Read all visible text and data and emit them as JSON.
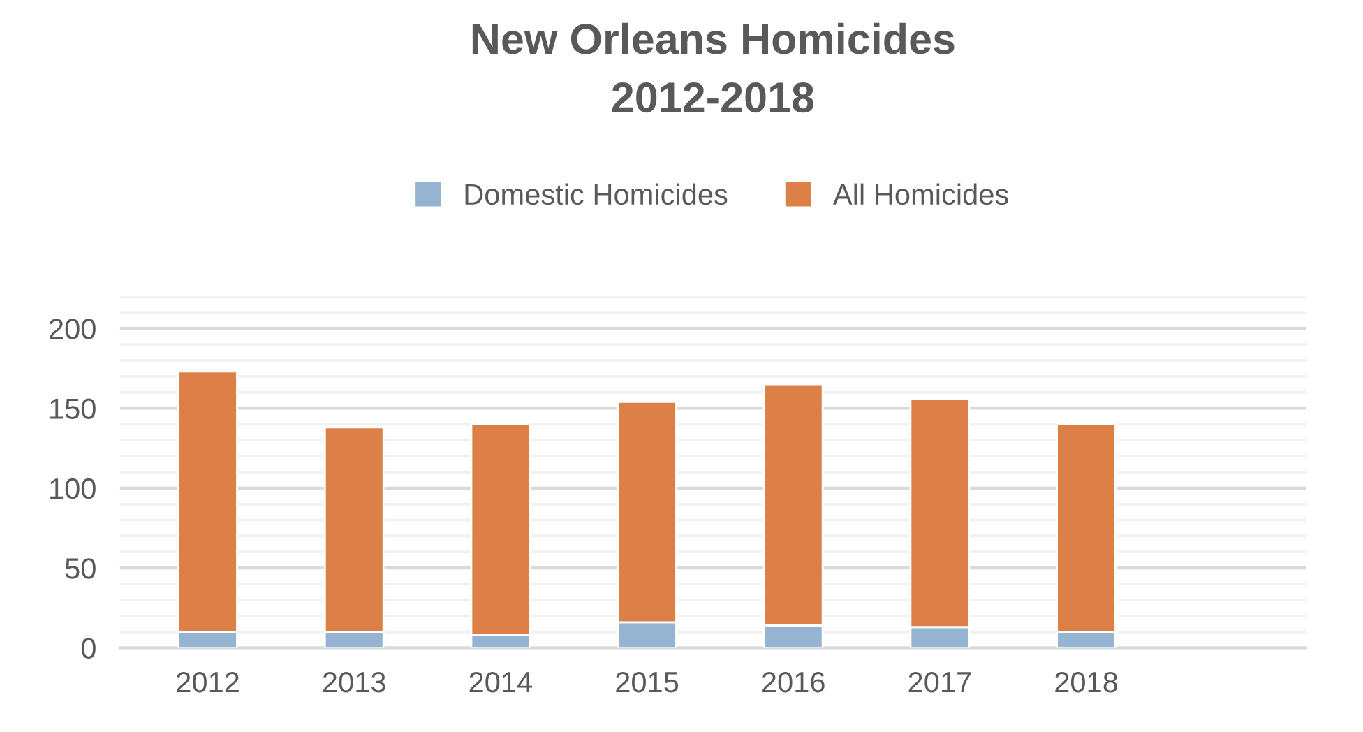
{
  "chart_data": {
    "type": "bar",
    "title": "New Orleans Homicides\n2012-2018",
    "stacked": true,
    "categories": [
      "2012",
      "2013",
      "2014",
      "2015",
      "2016",
      "2017",
      "2018",
      null
    ],
    "series": [
      {
        "name": "Domestic Homicides",
        "color": "#95b4d2",
        "values": [
          10,
          10,
          8,
          16,
          14,
          13,
          10,
          null
        ]
      },
      {
        "name": "All Homicides",
        "color": "#dd8047",
        "values": [
          163,
          128,
          132,
          138,
          151,
          143,
          130,
          null
        ]
      }
    ],
    "ylim": [
      0,
      220
    ],
    "yticks": [
      0,
      {
        "value": 10,
        "label": null
      },
      {
        "value": 20,
        "label": null
      },
      {
        "value": 30,
        "label": null
      },
      {
        "value": 40,
        "label": null
      },
      50,
      {
        "value": 60,
        "label": null
      },
      {
        "value": 70,
        "label": null
      },
      {
        "value": 80,
        "label": null
      },
      {
        "value": 90,
        "label": null
      },
      100,
      {
        "value": 110,
        "label": null
      },
      {
        "value": 120,
        "label": null
      },
      {
        "value": 130,
        "label": null
      },
      {
        "value": 140,
        "label": null
      },
      150,
      {
        "value": 160,
        "label": null
      },
      {
        "value": 170,
        "label": null
      },
      {
        "value": 180,
        "label": null
      },
      {
        "value": 190,
        "label": null
      },
      200,
      {
        "value": 210,
        "label": null
      },
      {
        "value": 220,
        "label": null
      }
    ],
    "grid": "y",
    "legend": "top"
  }
}
